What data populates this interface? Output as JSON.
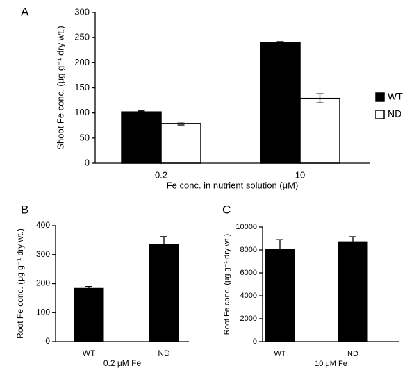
{
  "chart_data": [
    {
      "type": "bar",
      "label": "A",
      "ylabel": "Shoot Fe conc. (μg g⁻¹ dry wt.)",
      "xlabel": "Fe conc. in nutrient solution (μM)",
      "categories": [
        "0.2",
        "10"
      ],
      "series": [
        {
          "name": "WT",
          "color": "#000000",
          "values": [
            102,
            240
          ],
          "errors": [
            2,
            2
          ]
        },
        {
          "name": "ND",
          "color": "#ffffff",
          "values": [
            79,
            129
          ],
          "errors": [
            3,
            9
          ]
        }
      ],
      "ylim": [
        0,
        300
      ],
      "yticks": [
        0,
        50,
        100,
        150,
        200,
        250,
        300
      ],
      "legend": "right"
    },
    {
      "type": "bar",
      "label": "B",
      "ylabel": "Root Fe conc. (μg g⁻¹ dry wt.)",
      "xlabel": "0.2 μM Fe",
      "categories": [
        "WT",
        "ND"
      ],
      "values": [
        185,
        337
      ],
      "errors": [
        5,
        25
      ],
      "color": "#000000",
      "ylim": [
        0,
        400
      ],
      "yticks": [
        0,
        100,
        200,
        300,
        400
      ]
    },
    {
      "type": "bar",
      "label": "C",
      "ylabel": "Root Fe conc. (μg g⁻¹ dry wt.)",
      "xlabel": "10 μM Fe",
      "categories": [
        "WT",
        "ND"
      ],
      "values": [
        8100,
        8750
      ],
      "errors": [
        800,
        400
      ],
      "color": "#000000",
      "ylim": [
        0,
        10000
      ],
      "yticks": [
        0,
        2000,
        4000,
        6000,
        8000,
        10000
      ]
    }
  ]
}
